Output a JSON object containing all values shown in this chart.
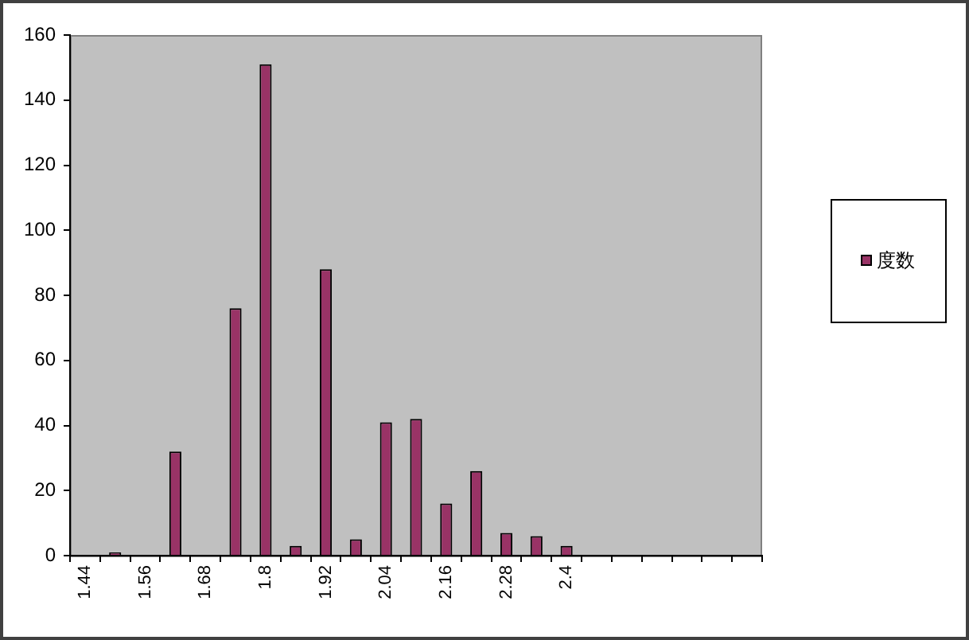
{
  "chart_data": {
    "type": "bar",
    "categories": [
      "1.44",
      null,
      "1.56",
      null,
      "1.68",
      null,
      "1.8",
      null,
      "1.92",
      null,
      "2.04",
      null,
      "2.16",
      null,
      "2.28",
      null,
      "2.4",
      null,
      null,
      null,
      null,
      null,
      null
    ],
    "series": [
      {
        "name": "度数",
        "color": "#993366",
        "values": [
          0,
          1,
          0,
          32,
          0,
          76,
          151,
          3,
          88,
          5,
          41,
          42,
          16,
          26,
          7,
          6,
          3,
          null,
          null,
          null,
          null,
          null,
          null
        ]
      }
    ],
    "ylim": [
      0,
      160
    ],
    "yticks": [
      0,
      20,
      40,
      60,
      80,
      100,
      120,
      140,
      160
    ],
    "grid": false,
    "legend": "right"
  }
}
